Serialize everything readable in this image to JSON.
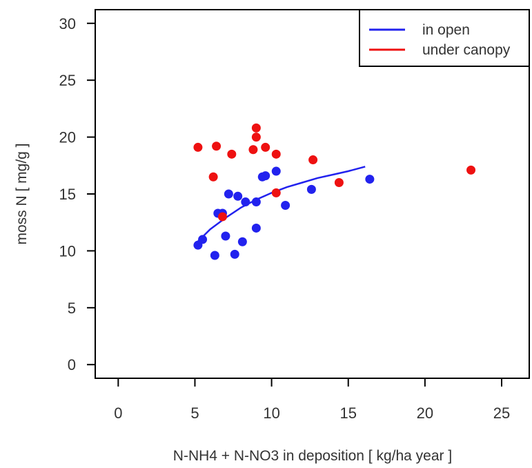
{
  "chart_data": {
    "type": "scatter",
    "title": "",
    "xlabel": "N-NH4 + N-NO3 in deposition [ kg/ha year ]",
    "ylabel": "moss N [ mg/g ]",
    "xlim": [
      -1.5,
      26.8
    ],
    "ylim": [
      -1.2,
      31.2
    ],
    "xticks": [
      0,
      5,
      10,
      15,
      20,
      25
    ],
    "yticks": [
      0,
      5,
      10,
      15,
      20,
      25,
      30
    ],
    "grid": false,
    "legend_position": "top-right",
    "series": [
      {
        "name": "in open",
        "color": "#2222ee",
        "points": [
          [
            5.2,
            10.5
          ],
          [
            5.5,
            11.0
          ],
          [
            6.3,
            9.6
          ],
          [
            6.5,
            13.3
          ],
          [
            6.8,
            13.3
          ],
          [
            7.0,
            11.3
          ],
          [
            7.2,
            15.0
          ],
          [
            7.6,
            9.7
          ],
          [
            7.8,
            14.8
          ],
          [
            8.1,
            10.8
          ],
          [
            8.3,
            14.3
          ],
          [
            9.0,
            14.3
          ],
          [
            9.0,
            12.0
          ],
          [
            9.4,
            16.5
          ],
          [
            9.6,
            16.6
          ],
          [
            10.3,
            17.0
          ],
          [
            10.9,
            14.0
          ],
          [
            12.6,
            15.4
          ],
          [
            16.4,
            16.3
          ]
        ],
        "fit_line": [
          [
            5.1,
            10.7
          ],
          [
            6.0,
            11.9
          ],
          [
            7.0,
            12.9
          ],
          [
            8.0,
            13.8
          ],
          [
            9.0,
            14.5
          ],
          [
            10.0,
            15.1
          ],
          [
            11.0,
            15.6
          ],
          [
            12.0,
            16.0
          ],
          [
            13.0,
            16.4
          ],
          [
            14.0,
            16.7
          ],
          [
            15.0,
            17.0
          ],
          [
            16.1,
            17.4
          ]
        ]
      },
      {
        "name": "under canopy",
        "color": "#ee1111",
        "points": [
          [
            5.2,
            19.1
          ],
          [
            6.2,
            16.5
          ],
          [
            6.4,
            19.2
          ],
          [
            6.8,
            13.0
          ],
          [
            7.4,
            18.5
          ],
          [
            8.8,
            18.9
          ],
          [
            9.0,
            20.8
          ],
          [
            9.0,
            20.0
          ],
          [
            9.6,
            19.1
          ],
          [
            10.3,
            18.5
          ],
          [
            10.3,
            15.1
          ],
          [
            12.7,
            18.0
          ],
          [
            14.4,
            16.0
          ],
          [
            23.0,
            17.1
          ]
        ]
      }
    ]
  }
}
